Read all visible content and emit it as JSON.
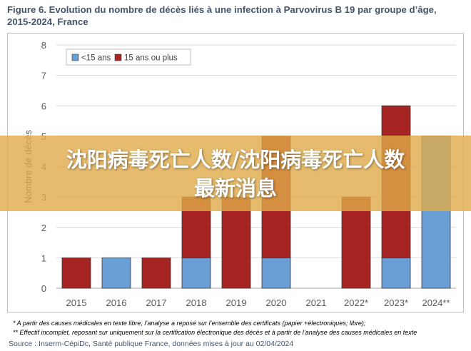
{
  "figure": {
    "title_line1": "Figure 6. Evolution du nombre de décès liés à une infection à Parvovirus B 19 par groupe d’âge,",
    "title_line2": "2015-2024, France",
    "notes": [
      "* A partir des causes médicales en texte libre, l’analyse a reposé sur l’ensemble des certificats (papier +électroniques; libre);",
      "** Effectif incomplet, reposant sur uniquement sur la certification électronique des décès et à partir de l’analyse des causes médicales en texte"
    ],
    "source": "Source : Inserm-CépiDc, Santé publique France, données mises à jour au 02/04/2024"
  },
  "banner": {
    "line1": "沈阳病毒死亡人数/沈阳病毒死亡人数",
    "line2": "最新消息",
    "color": "#e0aa48"
  },
  "chart_data": {
    "type": "bar",
    "stacked": true,
    "categories": [
      "2015",
      "2016",
      "2017",
      "2018",
      "2019",
      "2020",
      "2021",
      "2022*",
      "2023*",
      "2024**"
    ],
    "series": [
      {
        "name": "<15 ans",
        "color": "#6a9fd6",
        "values": [
          0,
          1,
          0,
          1,
          0,
          1,
          0,
          0,
          1,
          5
        ]
      },
      {
        "name": "15 ans ou plus",
        "color": "#a52422",
        "values": [
          1,
          0,
          1,
          2,
          3,
          4,
          0,
          3,
          5,
          0
        ]
      }
    ],
    "ylabel": "Nombre de décès",
    "ylim": [
      0,
      8
    ],
    "yticks": [
      "0",
      "1",
      "2",
      "3",
      "4",
      "5",
      "6",
      "7",
      "8"
    ],
    "grid": true,
    "legend_position": "top-left"
  }
}
